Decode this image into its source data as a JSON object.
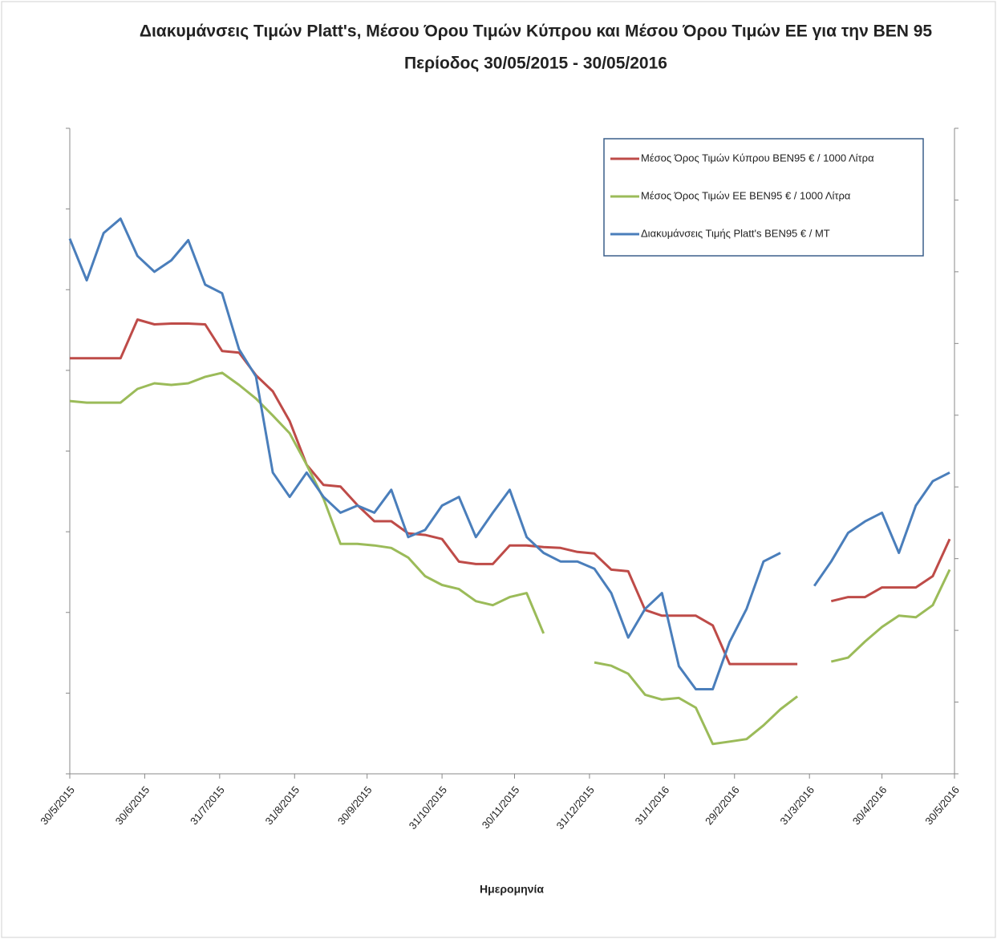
{
  "chart_data": {
    "type": "line",
    "title": "Διακυμάνσεις Τιμών Platt's, Μέσου Όρου Τιμών Κύπρου και Μέσου Όρου Τιμών ΕΕ για την ΒΕΝ 95",
    "subtitle": "Περίοδος 30/05/2015 - 30/05/2016",
    "x_label": "Ημερομηνία",
    "legend": "upper right",
    "x": [
      "2015-05-30",
      "2015-06-06",
      "2015-06-13",
      "2015-06-20",
      "2015-06-27",
      "2015-07-04",
      "2015-07-11",
      "2015-07-18",
      "2015-07-25",
      "2015-08-01",
      "2015-08-08",
      "2015-08-15",
      "2015-08-22",
      "2015-08-29",
      "2015-09-05",
      "2015-09-12",
      "2015-09-19",
      "2015-09-26",
      "2015-10-03",
      "2015-10-10",
      "2015-10-17",
      "2015-10-24",
      "2015-10-31",
      "2015-11-07",
      "2015-11-14",
      "2015-11-21",
      "2015-11-28",
      "2015-12-05",
      "2015-12-12",
      "2015-12-19",
      "2015-12-26",
      "2016-01-02",
      "2016-01-09",
      "2016-01-16",
      "2016-01-23",
      "2016-01-30",
      "2016-02-06",
      "2016-02-13",
      "2016-02-20",
      "2016-02-27",
      "2016-03-05",
      "2016-03-12",
      "2016-03-19",
      "2016-03-26",
      "2016-04-02",
      "2016-04-09",
      "2016-04-16",
      "2016-04-23",
      "2016-04-30",
      "2016-05-07",
      "2016-05-14",
      "2016-05-21",
      "2016-05-28"
    ],
    "xlim": [
      "2015-05-30",
      "2016-05-30"
    ],
    "xticks": [
      {
        "value": "2015-05-30",
        "label": "30/5/2015"
      },
      {
        "value": "2015-06-30",
        "label": "30/6/2015"
      },
      {
        "value": "2015-07-31",
        "label": "31/7/2015"
      },
      {
        "value": "2015-08-31",
        "label": "31/8/2015"
      },
      {
        "value": "2015-09-30",
        "label": "30/9/2015"
      },
      {
        "value": "2015-10-31",
        "label": "31/10/2015"
      },
      {
        "value": "2015-11-30",
        "label": "30/11/2015"
      },
      {
        "value": "2015-12-31",
        "label": "31/12/2015"
      },
      {
        "value": "2016-01-31",
        "label": "31/1/2016"
      },
      {
        "value": "2016-02-29",
        "label": "29/2/2016"
      },
      {
        "value": "2016-03-31",
        "label": "31/3/2016"
      },
      {
        "value": "2016-04-30",
        "label": "30/4/2016"
      },
      {
        "value": "2016-05-30",
        "label": "30/5/2016"
      }
    ],
    "ylim": [
      900,
      1700
    ],
    "yticks": [
      900,
      1000,
      1100,
      1200,
      1300,
      1400,
      1500,
      1600,
      1700
    ],
    "y2lim": [
      250,
      700
    ],
    "y2ticks": [
      250,
      300,
      350,
      400,
      450,
      500,
      550,
      600,
      650,
      700
    ],
    "series": [
      {
        "name": "Μέσος Όρος Τιμών Κύπρου ΒΕΝ95 € / 1000 Λίτρα",
        "color": "#be4b48",
        "values": [
          1415,
          1415,
          1415,
          1415,
          1463,
          1457,
          1458,
          1458,
          1457,
          1424,
          1422,
          1394,
          1374,
          1337,
          1283,
          1258,
          1256,
          1233,
          1213,
          1213,
          1198,
          1196,
          1191,
          1163,
          1160,
          1160,
          1183,
          1183,
          1181,
          1180,
          1175,
          1173,
          1153,
          1151,
          1103,
          1096,
          1096,
          1096,
          1084,
          1036,
          1036,
          1036,
          1036,
          1036,
          null,
          1114,
          1119,
          1119,
          1131,
          1131,
          1131,
          1145,
          1191
        ]
      },
      {
        "name": "Μέσος Όρος Τιμών ΕΕ ΒΕΝ95 € / 1000 Λίτρα",
        "color": "#9bbb59",
        "values": [
          1362,
          1360,
          1360,
          1360,
          1377,
          1384,
          1382,
          1384,
          1392,
          1397,
          1382,
          1365,
          1344,
          1322,
          1283,
          1241,
          1185,
          1185,
          1183,
          1180,
          1168,
          1145,
          1134,
          1129,
          1114,
          1109,
          1119,
          1124,
          1074,
          null,
          null,
          1038,
          1034,
          1024,
          998,
          992,
          994,
          982,
          937,
          940,
          943,
          960,
          980,
          996,
          null,
          1039,
          1044,
          1064,
          1082,
          1096,
          1094,
          1109,
          1153
        ]
      },
      {
        "name": "Διακυμάνσεις Τιμής Platt's ΒΕΝ95 € / ΜΤ",
        "color": "#4a7ebb",
        "axis": "y2",
        "values": [
          623,
          594,
          627,
          637,
          611,
          600,
          608,
          622,
          591,
          585,
          546,
          527,
          460,
          443,
          460,
          443,
          432,
          437,
          432,
          448,
          415,
          420,
          437,
          443,
          415,
          432,
          448,
          415,
          404,
          398,
          398,
          393,
          376,
          345,
          365,
          376,
          325,
          309,
          309,
          342,
          365,
          398,
          404,
          null,
          381,
          398,
          418,
          426,
          432,
          404,
          437,
          454,
          460
        ]
      }
    ]
  }
}
